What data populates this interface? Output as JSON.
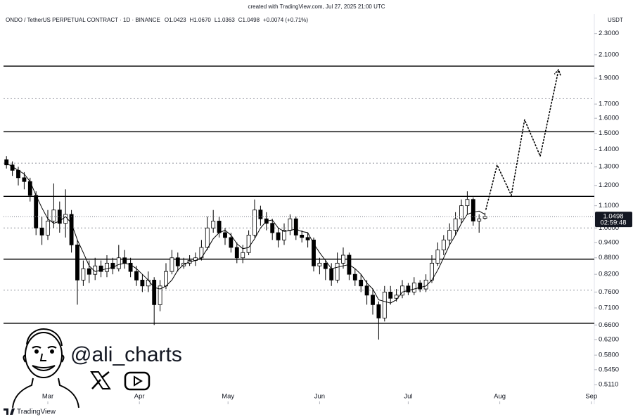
{
  "header": {
    "credit": "created with TradingView.com, Jul 27, 2025 21:00 UTC"
  },
  "chart_data": {
    "type": "candlestick",
    "symbol": "ONDO / TetherUS PERPETUAL CONTRACT · 1D · BINANCE",
    "ohlc_legend": [
      "O1.0423",
      "H1.0670",
      "L1.0363",
      "C1.0498",
      "+0.0074 (+0.71%)"
    ],
    "currency": "USDT",
    "log_scale": true,
    "up_color": "#ffffff",
    "down_color": "#000000",
    "xlim": [
      -15,
      185
    ],
    "xticks": [
      {
        "value": 0,
        "label": "Mar"
      },
      {
        "value": 31,
        "label": "Apr"
      },
      {
        "value": 61,
        "label": "May"
      },
      {
        "value": 92,
        "label": "Jun"
      },
      {
        "value": 122,
        "label": "Jul"
      },
      {
        "value": 153,
        "label": "Aug"
      },
      {
        "value": 184,
        "label": "Sep"
      }
    ],
    "ylim": [
      0.47,
      2.5
    ],
    "yticks": [
      {
        "value": 2.3,
        "label": "2.3000"
      },
      {
        "value": 2.1,
        "label": "2.1000"
      },
      {
        "value": 1.9,
        "label": "1.9000"
      },
      {
        "value": 1.7,
        "label": "1.7000"
      },
      {
        "value": 1.6,
        "label": "1.6000"
      },
      {
        "value": 1.5,
        "label": "1.5000"
      },
      {
        "value": 1.4,
        "label": "1.4000"
      },
      {
        "value": 1.3,
        "label": "1.3000"
      },
      {
        "value": 1.2,
        "label": "1.2000"
      },
      {
        "value": 1.1,
        "label": "1.1000"
      },
      {
        "value": 1.0,
        "label": "1.0000"
      },
      {
        "value": 0.94,
        "label": "0.9400"
      },
      {
        "value": 0.88,
        "label": "0.8800"
      },
      {
        "value": 0.82,
        "label": "0.8200"
      },
      {
        "value": 0.76,
        "label": "0.7600"
      },
      {
        "value": 0.71,
        "label": "0.7100"
      },
      {
        "value": 0.66,
        "label": "0.6600"
      },
      {
        "value": 0.62,
        "label": "0.6200"
      },
      {
        "value": 0.58,
        "label": "0.5800"
      },
      {
        "value": 0.545,
        "label": "0.5450"
      },
      {
        "value": 0.511,
        "label": "0.5110"
      }
    ],
    "candles": {
      "x": [
        -14,
        -12,
        -10,
        -8,
        -6,
        -4,
        -2,
        0,
        2,
        4,
        6,
        8,
        10,
        12,
        14,
        16,
        18,
        20,
        22,
        24,
        26,
        28,
        30,
        32,
        34,
        36,
        38,
        40,
        42,
        44,
        46,
        48,
        50,
        52,
        54,
        56,
        58,
        60,
        62,
        64,
        66,
        68,
        70,
        72,
        74,
        76,
        78,
        80,
        82,
        84,
        86,
        88,
        90,
        92,
        94,
        96,
        98,
        100,
        102,
        104,
        106,
        108,
        110,
        112,
        114,
        116,
        118,
        120,
        122,
        124,
        126,
        128,
        130,
        132,
        134,
        136,
        138,
        140,
        142,
        144,
        146,
        148
      ],
      "open": [
        1.34,
        1.31,
        1.28,
        1.24,
        1.22,
        1.15,
        1.0,
        0.97,
        1.03,
        1.08,
        1.02,
        1.06,
        0.93,
        0.8,
        0.84,
        0.82,
        0.85,
        0.83,
        0.86,
        0.84,
        0.88,
        0.86,
        0.83,
        0.8,
        0.78,
        0.8,
        0.72,
        0.78,
        0.83,
        0.88,
        0.85,
        0.86,
        0.87,
        0.88,
        0.92,
        1.0,
        1.03,
        0.98,
        0.96,
        0.92,
        0.88,
        0.9,
        0.97,
        1.08,
        1.04,
        1.02,
        0.98,
        0.95,
        0.99,
        1.04,
        0.97,
        0.96,
        0.95,
        0.85,
        0.86,
        0.84,
        0.8,
        0.86,
        0.89,
        0.82,
        0.8,
        0.78,
        0.75,
        0.72,
        0.68,
        0.76,
        0.74,
        0.75,
        0.78,
        0.76,
        0.79,
        0.77,
        0.8,
        0.86,
        0.91,
        0.95,
        0.99,
        1.04,
        1.1,
        1.13,
        1.03,
        1.0423
      ],
      "high": [
        1.36,
        1.33,
        1.3,
        1.27,
        1.24,
        1.17,
        1.05,
        1.08,
        1.21,
        1.12,
        1.18,
        1.08,
        0.95,
        0.87,
        0.87,
        0.88,
        0.87,
        0.89,
        0.88,
        0.93,
        0.91,
        0.88,
        0.85,
        0.82,
        0.83,
        0.81,
        0.8,
        0.86,
        0.91,
        0.9,
        0.88,
        0.89,
        0.9,
        0.95,
        1.05,
        1.08,
        1.05,
        1.0,
        0.98,
        0.94,
        0.93,
        0.99,
        1.13,
        1.1,
        1.07,
        1.04,
        1.0,
        1.02,
        1.06,
        1.05,
        0.99,
        0.98,
        0.96,
        0.88,
        0.87,
        0.86,
        0.9,
        0.92,
        0.9,
        0.84,
        0.82,
        0.8,
        0.77,
        0.73,
        0.78,
        0.78,
        0.77,
        0.8,
        0.79,
        0.81,
        0.8,
        0.82,
        0.89,
        0.94,
        0.97,
        1.02,
        1.07,
        1.13,
        1.17,
        1.14,
        1.06,
        1.067
      ],
      "low": [
        1.29,
        1.25,
        1.2,
        1.18,
        1.12,
        0.97,
        0.93,
        0.95,
        1.0,
        0.98,
        0.96,
        0.9,
        0.72,
        0.78,
        0.79,
        0.8,
        0.81,
        0.81,
        0.82,
        0.83,
        0.84,
        0.81,
        0.78,
        0.76,
        0.76,
        0.66,
        0.7,
        0.77,
        0.82,
        0.83,
        0.84,
        0.85,
        0.85,
        0.87,
        0.91,
        0.98,
        0.96,
        0.93,
        0.9,
        0.86,
        0.86,
        0.89,
        0.96,
        1.01,
        0.99,
        0.95,
        0.92,
        0.93,
        0.97,
        0.95,
        0.94,
        0.92,
        0.83,
        0.82,
        0.8,
        0.78,
        0.79,
        0.84,
        0.8,
        0.78,
        0.76,
        0.72,
        0.69,
        0.62,
        0.67,
        0.72,
        0.73,
        0.74,
        0.75,
        0.75,
        0.76,
        0.76,
        0.79,
        0.85,
        0.89,
        0.93,
        0.97,
        1.02,
        1.06,
        1.01,
        0.98,
        1.0363
      ],
      "close": [
        1.31,
        1.28,
        1.24,
        1.22,
        1.15,
        1.0,
        0.97,
        1.03,
        1.08,
        1.02,
        1.06,
        0.93,
        0.8,
        0.84,
        0.82,
        0.85,
        0.83,
        0.86,
        0.84,
        0.88,
        0.86,
        0.83,
        0.8,
        0.78,
        0.8,
        0.72,
        0.78,
        0.83,
        0.88,
        0.85,
        0.86,
        0.87,
        0.88,
        0.92,
        1.0,
        1.03,
        0.98,
        0.96,
        0.92,
        0.88,
        0.9,
        0.97,
        1.08,
        1.04,
        1.02,
        0.98,
        0.95,
        0.99,
        1.04,
        0.97,
        0.96,
        0.95,
        0.85,
        0.86,
        0.84,
        0.8,
        0.86,
        0.89,
        0.82,
        0.8,
        0.78,
        0.75,
        0.72,
        0.68,
        0.76,
        0.74,
        0.75,
        0.78,
        0.76,
        0.79,
        0.77,
        0.8,
        0.86,
        0.91,
        0.95,
        0.99,
        1.04,
        1.1,
        1.13,
        1.03,
        1.04,
        1.0498
      ]
    },
    "moving_average": [
      1.32,
      1.3,
      1.28,
      1.26,
      1.22,
      1.15,
      1.09,
      1.04,
      1.02,
      1.03,
      1.05,
      1.02,
      0.95,
      0.9,
      0.85,
      0.83,
      0.835,
      0.84,
      0.845,
      0.855,
      0.86,
      0.855,
      0.84,
      0.82,
      0.8,
      0.775,
      0.77,
      0.78,
      0.8,
      0.835,
      0.855,
      0.865,
      0.87,
      0.88,
      0.915,
      0.955,
      0.98,
      0.99,
      0.97,
      0.935,
      0.915,
      0.92,
      0.955,
      1.0,
      1.03,
      1.035,
      1.0,
      0.985,
      0.99,
      0.995,
      0.985,
      0.98,
      0.935,
      0.9,
      0.87,
      0.84,
      0.845,
      0.85,
      0.855,
      0.84,
      0.82,
      0.79,
      0.77,
      0.735,
      0.73,
      0.725,
      0.735,
      0.76,
      0.765,
      0.77,
      0.775,
      0.78,
      0.8,
      0.835,
      0.88,
      0.93,
      0.97,
      1.02,
      1.06,
      1.07,
      1.075,
      1.06
    ],
    "countdown": "02:59:48",
    "levels": [
      {
        "value": 2.0,
        "style": "solid"
      },
      {
        "value": 1.74,
        "style": "dotted"
      },
      {
        "value": 1.51,
        "style": "solid"
      },
      {
        "value": 1.32,
        "style": "dotted"
      },
      {
        "value": 1.145,
        "style": "solid"
      },
      {
        "value": 1.0,
        "style": "dotted"
      },
      {
        "value": 0.875,
        "style": "solid"
      },
      {
        "value": 0.766,
        "style": "dotted"
      },
      {
        "value": 0.665,
        "style": "solid"
      }
    ],
    "projection": {
      "x": [
        148.3,
        152.1,
        156.9,
        161.4,
        166.7,
        172.9
      ],
      "y": [
        1.083,
        1.31,
        1.15,
        1.59,
        1.36,
        1.97
      ]
    }
  },
  "watermark": {
    "handle": "@ali_charts"
  },
  "footer": {
    "brand": "TradingView"
  }
}
